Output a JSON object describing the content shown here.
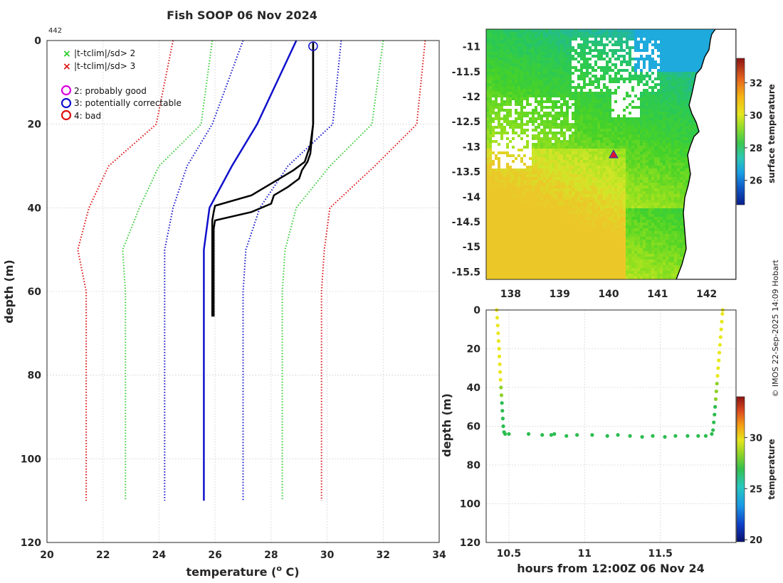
{
  "title": "Fish SOOP 06 Nov 2024",
  "profile_id": "442",
  "credit": "© IMOS 22-Sep-2025 14:09 Hobart",
  "colors": {
    "red": "#dd1111",
    "green": "#33cc33",
    "blue": "#1111cc",
    "profile": "#000000",
    "marker_sst": "#2a46c8",
    "cruise_red": "#e01030",
    "cruise_green": "#22aa44"
  },
  "chart_data": [
    {
      "type": "line",
      "name": "temperature-depth profile",
      "xlabel": "temperature (",
      "xlabel_sup": "o",
      "xlabel_tail": " C)",
      "ylabel": "depth (m)",
      "xlim": [
        20,
        34
      ],
      "ylim": [
        0,
        120
      ],
      "xticks": [
        20,
        22,
        24,
        26,
        28,
        30,
        32,
        34
      ],
      "yticks": [
        0,
        20,
        40,
        60,
        80,
        100,
        120
      ],
      "grid": true,
      "legend": [
        {
          "symbol": "x",
          "color": "#22cc22",
          "label": "|t-tclim|/sd> 2"
        },
        {
          "symbol": "x",
          "color": "#dd1111",
          "label": "|t-tclim|/sd> 3"
        },
        {
          "symbol": "o",
          "color": "#dd00dd",
          "label": "2: probably good"
        },
        {
          "symbol": "o",
          "color": "#1111cc",
          "label": "3: potentially correctable"
        },
        {
          "symbol": "o",
          "color": "#dd1111",
          "label": "4: bad"
        }
      ],
      "climatology_depths": [
        0,
        20,
        30,
        40,
        50,
        60,
        110
      ],
      "series": [
        {
          "name": "clim mean",
          "style": "solid",
          "color": "blue",
          "t": [
            28.9,
            27.5,
            26.6,
            25.8,
            25.6,
            25.6,
            25.6
          ]
        },
        {
          "name": "-1 sd",
          "style": "dotted",
          "color": "blue",
          "t": [
            27.0,
            25.9,
            25.0,
            24.5,
            24.2,
            24.2,
            24.2
          ]
        },
        {
          "name": "+1 sd",
          "style": "dotted",
          "color": "blue",
          "t": [
            30.5,
            30.2,
            28.6,
            27.6,
            27.1,
            27.0,
            27.0
          ]
        },
        {
          "name": "-2 sd",
          "style": "dotted",
          "color": "green",
          "t": [
            25.9,
            25.5,
            24.0,
            23.3,
            22.7,
            22.8,
            22.8
          ]
        },
        {
          "name": "+2 sd",
          "style": "dotted",
          "color": "green",
          "t": [
            32.0,
            31.6,
            30.1,
            28.9,
            28.5,
            28.4,
            28.4
          ]
        },
        {
          "name": "-3 sd",
          "style": "dotted",
          "color": "red",
          "t": [
            24.5,
            23.9,
            22.2,
            21.5,
            21.1,
            21.4,
            21.4
          ]
        },
        {
          "name": "+3 sd",
          "style": "dotted",
          "color": "red",
          "t": [
            33.5,
            33.2,
            31.7,
            30.1,
            29.9,
            29.8,
            29.8
          ]
        }
      ],
      "profiles": [
        {
          "name": "descent",
          "depth": [
            0.5,
            5,
            10,
            20,
            25,
            27,
            29,
            31,
            33,
            37,
            39.5,
            41,
            43,
            45,
            50,
            55,
            60,
            64,
            66
          ],
          "t": [
            29.5,
            29.5,
            29.5,
            29.5,
            29.4,
            29.3,
            29.2,
            28.8,
            28.3,
            27.3,
            26.0,
            25.95,
            25.9,
            25.9,
            25.9,
            25.9,
            25.9,
            25.9,
            25.9
          ]
        },
        {
          "name": "ascent",
          "depth": [
            66,
            60,
            55,
            50,
            45,
            43,
            41,
            39,
            37,
            35,
            33,
            31,
            29,
            27,
            20,
            10,
            0.5
          ],
          "t": [
            25.95,
            25.95,
            25.95,
            25.95,
            25.95,
            26.0,
            27.3,
            28.0,
            28.1,
            28.6,
            29.0,
            29.1,
            29.3,
            29.4,
            29.5,
            29.5,
            29.5
          ]
        }
      ],
      "flag_marker": {
        "t": 29.5,
        "depth": 0.5,
        "flag": "3: potentially correctable"
      }
    },
    {
      "type": "heatmap",
      "name": "surface temperature map",
      "colorbar_label": "surface temperature",
      "xlim": [
        137.5,
        142.6
      ],
      "ylim": [
        -15.65,
        -10.65
      ],
      "xticks": [
        138,
        139,
        140,
        141,
        142
      ],
      "yticks": [
        -11,
        -11.5,
        -12,
        -12.5,
        -13,
        -13.5,
        -14,
        -14.5,
        -15,
        -15.5
      ],
      "colorbar_range": [
        24.5,
        33.5
      ],
      "colorbar_ticks": [
        26,
        28,
        30,
        32
      ],
      "marker": {
        "lon": 140.1,
        "lat": -13.15,
        "symbol": "triangle"
      }
    },
    {
      "type": "scatter",
      "name": "depth vs time",
      "xlabel": "hours from 12:00Z 06 Nov 24",
      "ylabel": "depth (m)",
      "xlim": [
        10.35,
        12.0
      ],
      "ylim": [
        0,
        120
      ],
      "xticks": [
        10.5,
        11,
        11.5
      ],
      "yticks": [
        0,
        20,
        40,
        60,
        80,
        100,
        120
      ],
      "colorbar_label": "temperature",
      "colorbar_range": [
        19.8,
        34
      ],
      "colorbar_ticks": [
        20,
        25,
        30
      ],
      "points": [
        [
          10.42,
          0
        ],
        [
          10.423,
          4
        ],
        [
          10.426,
          8
        ],
        [
          10.429,
          12
        ],
        [
          10.432,
          16
        ],
        [
          10.435,
          20
        ],
        [
          10.437,
          24
        ],
        [
          10.44,
          28
        ],
        [
          10.442,
          32
        ],
        [
          10.445,
          36
        ],
        [
          10.448,
          40
        ],
        [
          10.451,
          44
        ],
        [
          10.454,
          48
        ],
        [
          10.457,
          52
        ],
        [
          10.46,
          56
        ],
        [
          10.463,
          60
        ],
        [
          10.468,
          63
        ],
        [
          10.475,
          64
        ],
        [
          10.5,
          64
        ],
        [
          10.63,
          64
        ],
        [
          10.72,
          64.5
        ],
        [
          10.78,
          64.5
        ],
        [
          10.8,
          64
        ],
        [
          10.88,
          65
        ],
        [
          10.95,
          64.5
        ],
        [
          11.05,
          64.5
        ],
        [
          11.15,
          65
        ],
        [
          11.22,
          64.5
        ],
        [
          11.3,
          65
        ],
        [
          11.38,
          65.5
        ],
        [
          11.45,
          65
        ],
        [
          11.53,
          65.5
        ],
        [
          11.6,
          65
        ],
        [
          11.68,
          65
        ],
        [
          11.75,
          65
        ],
        [
          11.8,
          65
        ],
        [
          11.84,
          64
        ],
        [
          11.848,
          62
        ],
        [
          11.853,
          58
        ],
        [
          11.858,
          54
        ],
        [
          11.862,
          50
        ],
        [
          11.866,
          46
        ],
        [
          11.87,
          42
        ],
        [
          11.874,
          38
        ],
        [
          11.878,
          34
        ],
        [
          11.882,
          30
        ],
        [
          11.886,
          26
        ],
        [
          11.89,
          22
        ],
        [
          11.894,
          18
        ],
        [
          11.898,
          14
        ],
        [
          11.902,
          10
        ],
        [
          11.906,
          6
        ],
        [
          11.91,
          2
        ],
        [
          11.912,
          0
        ]
      ],
      "temps_note": "surface ~29.5 C (yellow), below 40 m ~26 C (green)"
    }
  ]
}
